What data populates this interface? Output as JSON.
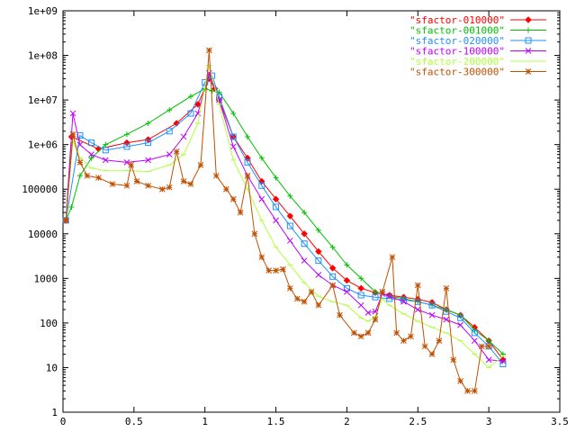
{
  "chart_data": {
    "type": "line",
    "title": "",
    "xlabel": "",
    "ylabel": "",
    "xlim": [
      0,
      3.5
    ],
    "ylim": [
      1,
      1000000000
    ],
    "yscale": "log",
    "grid": false,
    "legend_position": "top-right",
    "x_ticks": [
      {
        "value": 0,
        "label": "0"
      },
      {
        "value": 0.5,
        "label": "0.5"
      },
      {
        "value": 1,
        "label": "1"
      },
      {
        "value": 1.5,
        "label": "1.5"
      },
      {
        "value": 2,
        "label": "2"
      },
      {
        "value": 2.5,
        "label": "2.5"
      },
      {
        "value": 3,
        "label": "3"
      },
      {
        "value": 3.5,
        "label": "3.5"
      }
    ],
    "y_ticks": [
      {
        "value": 1,
        "label": "1"
      },
      {
        "value": 10,
        "label": "10"
      },
      {
        "value": 100,
        "label": "100"
      },
      {
        "value": 1000,
        "label": "1000"
      },
      {
        "value": 10000,
        "label": "10000"
      },
      {
        "value": 100000,
        "label": "100000"
      },
      {
        "value": 1000000,
        "label": "1e+06"
      },
      {
        "value": 10000000,
        "label": "1e+07"
      },
      {
        "value": 100000000,
        "label": "1e+08"
      },
      {
        "value": 1000000000,
        "label": "1e+09"
      }
    ],
    "series": [
      {
        "name": "\"sfactor-010000\"",
        "color": "#ff0000",
        "marker": "diamond",
        "points": [
          [
            0.02,
            20000
          ],
          [
            0.06,
            1500000
          ],
          [
            0.25,
            800000
          ],
          [
            0.45,
            1100000
          ],
          [
            0.6,
            1300000
          ],
          [
            0.8,
            3000000
          ],
          [
            0.95,
            8000000
          ],
          [
            1.03,
            30000000
          ],
          [
            1.07,
            18000000
          ],
          [
            1.1,
            10000000
          ],
          [
            1.2,
            1500000
          ],
          [
            1.3,
            500000
          ],
          [
            1.4,
            150000
          ],
          [
            1.5,
            60000
          ],
          [
            1.6,
            25000
          ],
          [
            1.7,
            10000
          ],
          [
            1.8,
            4000
          ],
          [
            1.9,
            1700
          ],
          [
            2.0,
            900
          ],
          [
            2.1,
            600
          ],
          [
            2.2,
            480
          ],
          [
            2.3,
            420
          ],
          [
            2.4,
            380
          ],
          [
            2.5,
            340
          ],
          [
            2.6,
            290
          ],
          [
            2.7,
            200
          ],
          [
            2.8,
            150
          ],
          [
            2.9,
            80
          ],
          [
            3.0,
            40
          ],
          [
            3.1,
            15
          ]
        ]
      },
      {
        "name": "\"sfactor-001000\"",
        "color": "#00c000",
        "marker": "plus",
        "points": [
          [
            0.02,
            20000
          ],
          [
            0.06,
            40000
          ],
          [
            0.12,
            200000
          ],
          [
            0.2,
            500000
          ],
          [
            0.3,
            1000000
          ],
          [
            0.45,
            1700000
          ],
          [
            0.6,
            3000000
          ],
          [
            0.75,
            6000000
          ],
          [
            0.9,
            12000000
          ],
          [
            1.0,
            18000000
          ],
          [
            1.05,
            16000000
          ],
          [
            1.1,
            15000000
          ],
          [
            1.2,
            5000000
          ],
          [
            1.3,
            1500000
          ],
          [
            1.4,
            500000
          ],
          [
            1.5,
            180000
          ],
          [
            1.6,
            70000
          ],
          [
            1.7,
            30000
          ],
          [
            1.8,
            12000
          ],
          [
            1.9,
            5000
          ],
          [
            2.0,
            2000
          ],
          [
            2.1,
            1000
          ],
          [
            2.2,
            500
          ],
          [
            2.3,
            400
          ],
          [
            2.4,
            350
          ],
          [
            2.5,
            300
          ],
          [
            2.6,
            250
          ],
          [
            2.7,
            200
          ],
          [
            2.8,
            150
          ],
          [
            2.9,
            70
          ],
          [
            3.0,
            40
          ],
          [
            3.1,
            20
          ]
        ]
      },
      {
        "name": "\"sfactor-020000\"",
        "color": "#1e90ff",
        "marker": "square",
        "points": [
          [
            0.02,
            20000
          ],
          [
            0.12,
            1600000
          ],
          [
            0.2,
            1100000
          ],
          [
            0.3,
            750000
          ],
          [
            0.45,
            900000
          ],
          [
            0.6,
            1100000
          ],
          [
            0.75,
            2000000
          ],
          [
            0.9,
            5000000
          ],
          [
            1.0,
            25000000
          ],
          [
            1.05,
            35000000
          ],
          [
            1.1,
            12000000
          ],
          [
            1.2,
            1500000
          ],
          [
            1.3,
            400000
          ],
          [
            1.4,
            120000
          ],
          [
            1.5,
            40000
          ],
          [
            1.6,
            15000
          ],
          [
            1.7,
            6000
          ],
          [
            1.8,
            2500
          ],
          [
            1.9,
            1100
          ],
          [
            2.0,
            600
          ],
          [
            2.1,
            420
          ],
          [
            2.2,
            380
          ],
          [
            2.3,
            350
          ],
          [
            2.4,
            330
          ],
          [
            2.5,
            300
          ],
          [
            2.6,
            250
          ],
          [
            2.7,
            180
          ],
          [
            2.8,
            130
          ],
          [
            2.9,
            60
          ],
          [
            3.0,
            30
          ],
          [
            3.1,
            12
          ]
        ]
      },
      {
        "name": "\"sfactor-100000\"",
        "color": "#c000ff",
        "marker": "cross",
        "points": [
          [
            0.02,
            20000
          ],
          [
            0.07,
            5000000
          ],
          [
            0.12,
            1000000
          ],
          [
            0.2,
            600000
          ],
          [
            0.3,
            450000
          ],
          [
            0.45,
            400000
          ],
          [
            0.6,
            450000
          ],
          [
            0.75,
            600000
          ],
          [
            0.85,
            1500000
          ],
          [
            0.95,
            5000000
          ],
          [
            1.03,
            40000000
          ],
          [
            1.1,
            10000000
          ],
          [
            1.2,
            900000
          ],
          [
            1.3,
            200000
          ],
          [
            1.4,
            60000
          ],
          [
            1.5,
            20000
          ],
          [
            1.6,
            7000
          ],
          [
            1.7,
            2500
          ],
          [
            1.8,
            1200
          ],
          [
            1.9,
            700
          ],
          [
            2.0,
            500
          ],
          [
            2.1,
            250
          ],
          [
            2.15,
            170
          ],
          [
            2.2,
            180
          ],
          [
            2.25,
            450
          ],
          [
            2.3,
            400
          ],
          [
            2.4,
            300
          ],
          [
            2.5,
            200
          ],
          [
            2.6,
            150
          ],
          [
            2.7,
            120
          ],
          [
            2.8,
            90
          ],
          [
            2.9,
            40
          ],
          [
            3.0,
            15
          ],
          [
            3.1,
            14
          ]
        ]
      },
      {
        "name": "\"sfactor-200000\"",
        "color": "#b0ff40",
        "marker": "dash",
        "points": [
          [
            0.02,
            20000
          ],
          [
            0.07,
            1200000
          ],
          [
            0.12,
            500000
          ],
          [
            0.2,
            300000
          ],
          [
            0.3,
            260000
          ],
          [
            0.45,
            260000
          ],
          [
            0.6,
            250000
          ],
          [
            0.75,
            350000
          ],
          [
            0.85,
            600000
          ],
          [
            0.95,
            3000000
          ],
          [
            1.03,
            60000000
          ],
          [
            1.1,
            8000000
          ],
          [
            1.2,
            450000
          ],
          [
            1.3,
            100000
          ],
          [
            1.4,
            20000
          ],
          [
            1.5,
            5000
          ],
          [
            1.6,
            2000
          ],
          [
            1.7,
            800
          ],
          [
            1.8,
            400
          ],
          [
            1.9,
            300
          ],
          [
            2.0,
            250
          ],
          [
            2.1,
            130
          ],
          [
            2.15,
            110
          ],
          [
            2.2,
            140
          ],
          [
            2.25,
            350
          ],
          [
            2.3,
            250
          ],
          [
            2.4,
            160
          ],
          [
            2.5,
            110
          ],
          [
            2.6,
            80
          ],
          [
            2.7,
            60
          ],
          [
            2.8,
            40
          ],
          [
            2.9,
            20
          ],
          [
            3.0,
            10
          ],
          [
            3.1,
            18
          ]
        ]
      },
      {
        "name": "\"sfactor-300000\"",
        "color": "#c05000",
        "marker": "star",
        "points": [
          [
            0.02,
            20000
          ],
          [
            0.07,
            1700000
          ],
          [
            0.12,
            400000
          ],
          [
            0.17,
            200000
          ],
          [
            0.25,
            180000
          ],
          [
            0.35,
            130000
          ],
          [
            0.45,
            120000
          ],
          [
            0.48,
            350000
          ],
          [
            0.52,
            150000
          ],
          [
            0.6,
            120000
          ],
          [
            0.7,
            100000
          ],
          [
            0.75,
            110000
          ],
          [
            0.8,
            700000
          ],
          [
            0.85,
            150000
          ],
          [
            0.9,
            130000
          ],
          [
            0.97,
            350000
          ],
          [
            1.03,
            130000000
          ],
          [
            1.08,
            200000
          ],
          [
            1.15,
            100000
          ],
          [
            1.2,
            60000
          ],
          [
            1.25,
            30000
          ],
          [
            1.3,
            200000
          ],
          [
            1.35,
            10000
          ],
          [
            1.4,
            3000
          ],
          [
            1.45,
            1500
          ],
          [
            1.5,
            1500
          ],
          [
            1.55,
            1600
          ],
          [
            1.6,
            600
          ],
          [
            1.65,
            350
          ],
          [
            1.7,
            300
          ],
          [
            1.75,
            500
          ],
          [
            1.8,
            250
          ],
          [
            1.9,
            700
          ],
          [
            1.95,
            150
          ],
          [
            2.05,
            60
          ],
          [
            2.1,
            50
          ],
          [
            2.15,
            60
          ],
          [
            2.2,
            120
          ],
          [
            2.25,
            500
          ],
          [
            2.32,
            3000
          ],
          [
            2.35,
            60
          ],
          [
            2.4,
            40
          ],
          [
            2.45,
            50
          ],
          [
            2.5,
            700
          ],
          [
            2.55,
            30
          ],
          [
            2.6,
            20
          ],
          [
            2.65,
            40
          ],
          [
            2.7,
            600
          ],
          [
            2.75,
            15
          ],
          [
            2.8,
            5
          ],
          [
            2.85,
            3
          ],
          [
            2.9,
            3
          ],
          [
            2.95,
            30
          ],
          [
            3.0,
            30
          ]
        ]
      }
    ]
  }
}
